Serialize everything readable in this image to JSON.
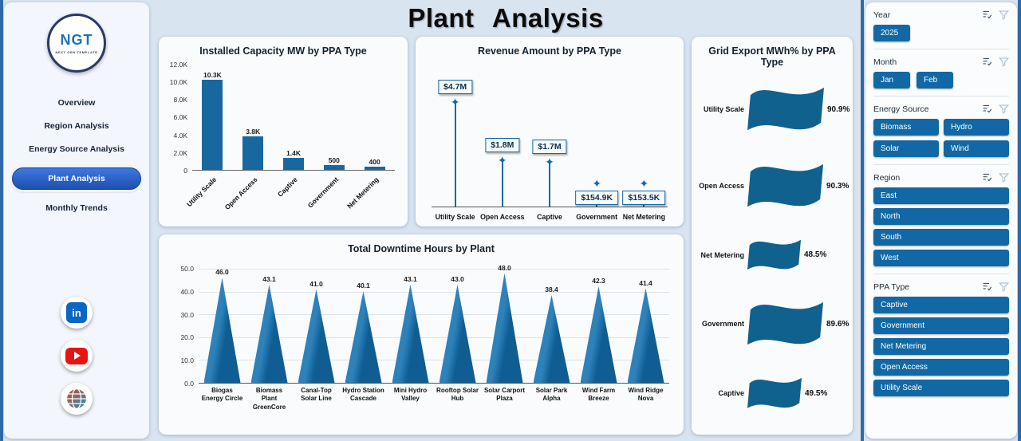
{
  "page": {
    "title": "Plant Analysis"
  },
  "sidebar": {
    "logo": {
      "text": "NGT",
      "subtext": "NEXT GEN TEMPLATE"
    },
    "items": [
      {
        "label": "Overview",
        "active": false
      },
      {
        "label": "Region Analysis",
        "active": false
      },
      {
        "label": "Energy Source Analysis",
        "active": false
      },
      {
        "label": "Plant Analysis",
        "active": true
      },
      {
        "label": "Monthly Trends",
        "active": false
      }
    ],
    "social": {
      "linkedin_glyph": "in",
      "icons": [
        "linkedin-icon",
        "youtube-icon",
        "globe-icon"
      ]
    }
  },
  "chart_data": [
    {
      "id": "capacity",
      "type": "bar",
      "title": "Installed Capacity MW by PPA Type",
      "categories": [
        "Utility Scale",
        "Open Access",
        "Captive",
        "Government",
        "Net Metering"
      ],
      "values": [
        10300,
        3800,
        1400,
        500,
        400
      ],
      "labels": [
        "10.3K",
        "3.8K",
        "1.4K",
        "500",
        "400"
      ],
      "ylabels": [
        "12.0K",
        "10.0K",
        "8.0K",
        "6.0K",
        "4.0K",
        "2.0K",
        "0"
      ],
      "ymax": 12000,
      "ylim": [
        0,
        12000
      ],
      "grid": false,
      "bar_color": "#17689f"
    },
    {
      "id": "revenue",
      "type": "pin",
      "title": "Revenue Amount by PPA Type",
      "categories": [
        "Utility Scale",
        "Open Access",
        "Captive",
        "Government",
        "Net Metering"
      ],
      "values": [
        4700000,
        1800000,
        1700000,
        154900,
        153500
      ],
      "labels": [
        "$4.7M",
        "$1.8M",
        "$1.7M",
        "$154.9K",
        "$153.5K"
      ],
      "ymax": 4700000,
      "marker": "four-pointed-star",
      "accent_color": "#1168a5"
    },
    {
      "id": "downtime",
      "type": "triangle",
      "title": "Total Downtime Hours by Plant",
      "categories": [
        "Biogas Energy Circle",
        "Biomass Plant GreenCore",
        "Canal-Top Solar Line",
        "Hydro Station Cascade",
        "Mini Hydro Valley",
        "Rooftop Solar Hub",
        "Solar Carport Plaza",
        "Solar Park Alpha",
        "Wind Farm Breeze",
        "Wind Ridge Nova"
      ],
      "values": [
        46.0,
        43.1,
        41.0,
        40.1,
        43.1,
        43.0,
        48.0,
        38.4,
        42.3,
        41.4
      ],
      "labels": [
        "46.0",
        "43.1",
        "41.0",
        "40.1",
        "43.1",
        "43.0",
        "48.0",
        "38.4",
        "42.3",
        "41.4"
      ],
      "ylabels": [
        "50.0",
        "40.0",
        "30.0",
        "20.0",
        "10.0",
        "0.0"
      ],
      "ymax": 50,
      "ylim": [
        0,
        50
      ],
      "grid": true
    },
    {
      "id": "export",
      "type": "flag",
      "title": "Grid Export MWh% by PPA Type",
      "categories": [
        "Utility Scale",
        "Open Access",
        "Net Metering",
        "Government",
        "Captive"
      ],
      "values": [
        90.9,
        90.3,
        48.5,
        89.6,
        49.5
      ],
      "labels": [
        "90.9%",
        "90.3%",
        "48.5%",
        "89.6%",
        "49.5%"
      ],
      "flag_color": "#11618f"
    }
  ],
  "filters": {
    "icon_names": [
      "clear-selections-icon",
      "filter-icon"
    ],
    "sections": [
      {
        "label": "Year",
        "layout": "inline",
        "options": [
          "2025"
        ]
      },
      {
        "label": "Month",
        "layout": "inline",
        "options": [
          "Jan",
          "Feb"
        ]
      },
      {
        "label": "Energy Source",
        "layout": "grid2",
        "options": [
          "Biomass",
          "Hydro",
          "Solar",
          "Wind"
        ]
      },
      {
        "label": "Region",
        "layout": "stack",
        "options": [
          "East",
          "North",
          "South",
          "West"
        ]
      },
      {
        "label": "PPA Type",
        "layout": "stack",
        "options": [
          "Captive",
          "Government",
          "Net Metering",
          "Open Access",
          "Utility Scale"
        ]
      }
    ]
  },
  "colors": {
    "accent": "#1168a5",
    "bar": "#17689f",
    "active_nav": "#2b63c6",
    "linkedin": "#0a66c2",
    "youtube": "#e81414"
  }
}
